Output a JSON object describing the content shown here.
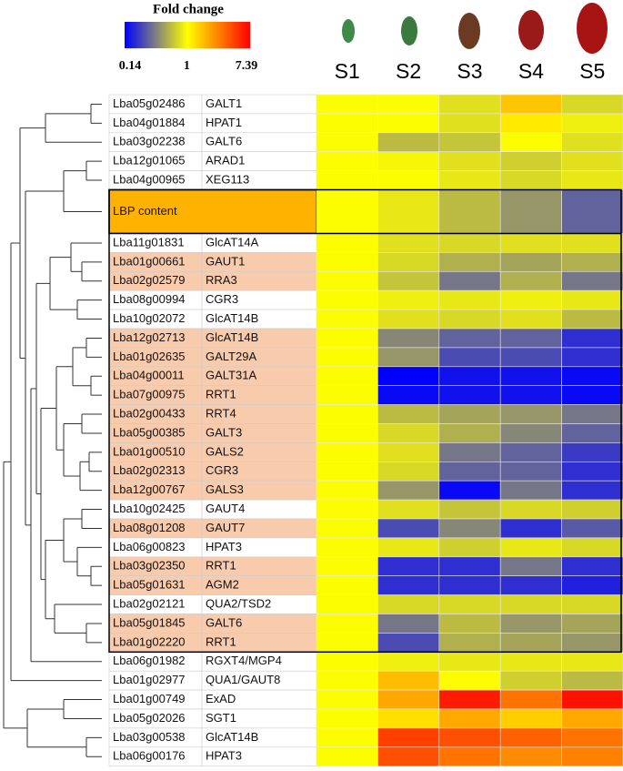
{
  "chart_data": {
    "type": "heatmap",
    "colorbar_title": "Fold change",
    "columns": [
      "S1",
      "S2",
      "S3",
      "S4",
      "S5"
    ],
    "clim": [
      0.14,
      7.39
    ],
    "cticks": [
      0.14,
      1,
      7.39
    ],
    "log_scale": true,
    "colors": [
      "#0000ff",
      "#ffff00",
      "#ff0000"
    ],
    "rows": [
      {
        "id": "Lba05g02486",
        "name": "GALT1",
        "highlight": false,
        "values": [
          1,
          1,
          0.8,
          1.6,
          0.75
        ]
      },
      {
        "id": "Lba04g01884",
        "name": "HPAT1",
        "highlight": false,
        "values": [
          1,
          1,
          0.8,
          1.2,
          0.9
        ]
      },
      {
        "id": "Lba03g02238",
        "name": "GALT6",
        "highlight": false,
        "values": [
          1,
          0.6,
          0.65,
          1,
          0.8
        ]
      },
      {
        "id": "Lba12g01065",
        "name": "ARAD1",
        "highlight": false,
        "values": [
          1,
          0.95,
          0.8,
          0.7,
          0.8
        ]
      },
      {
        "id": "Lba04g00965",
        "name": "XEG113",
        "highlight": false,
        "values": [
          1,
          1,
          0.85,
          0.75,
          0.85
        ]
      },
      {
        "label": "LBP content",
        "values": [
          1,
          0.85,
          0.6,
          0.45,
          0.3
        ]
      },
      {
        "id": "Lba11g01831",
        "name": "GlcAT14A",
        "highlight": false,
        "values": [
          1,
          0.8,
          0.75,
          0.8,
          0.8
        ]
      },
      {
        "id": "Lba01g00661",
        "name": "GAUT1",
        "highlight": true,
        "values": [
          1,
          0.75,
          0.55,
          0.5,
          0.55
        ]
      },
      {
        "id": "Lba02g02579",
        "name": "RRA3",
        "highlight": true,
        "values": [
          1,
          0.65,
          0.35,
          0.55,
          0.35
        ]
      },
      {
        "id": "Lba08g00994",
        "name": "CGR3",
        "highlight": false,
        "values": [
          1,
          0.9,
          0.85,
          0.9,
          0.85
        ]
      },
      {
        "id": "Lba10g02072",
        "name": "GlcAT14B",
        "highlight": false,
        "values": [
          1,
          0.8,
          0.75,
          0.8,
          0.6
        ]
      },
      {
        "id": "Lba12g02713",
        "name": "GlcAT14B",
        "highlight": true,
        "values": [
          1,
          0.4,
          0.3,
          0.3,
          0.2
        ]
      },
      {
        "id": "Lba01g02635",
        "name": "GALT29A",
        "highlight": true,
        "values": [
          1,
          0.45,
          0.25,
          0.25,
          0.2
        ]
      },
      {
        "id": "Lba04g00011",
        "name": "GALT31A",
        "highlight": true,
        "values": [
          1,
          0.14,
          0.16,
          0.16,
          0.15
        ]
      },
      {
        "id": "Lba07g00975",
        "name": "RRT1",
        "highlight": true,
        "values": [
          1,
          0.15,
          0.16,
          0.16,
          0.15
        ]
      },
      {
        "id": "Lba02g00433",
        "name": "RRT4",
        "highlight": true,
        "values": [
          1,
          0.6,
          0.5,
          0.45,
          0.35
        ]
      },
      {
        "id": "Lba05g00385",
        "name": "GALT3",
        "highlight": true,
        "values": [
          1,
          0.75,
          0.55,
          0.4,
          0.3
        ]
      },
      {
        "id": "Lba01g00510",
        "name": "GALS2",
        "highlight": true,
        "values": [
          1,
          0.8,
          0.35,
          0.3,
          0.22
        ]
      },
      {
        "id": "Lba02g02313",
        "name": "CGR3",
        "highlight": true,
        "values": [
          1,
          0.75,
          0.3,
          0.3,
          0.2
        ]
      },
      {
        "id": "Lba12g00767",
        "name": "GALS3",
        "highlight": true,
        "values": [
          1,
          0.45,
          0.15,
          0.35,
          0.2
        ]
      },
      {
        "id": "Lba10g02425",
        "name": "GAUT4",
        "highlight": false,
        "values": [
          1,
          0.8,
          0.65,
          0.75,
          0.7
        ]
      },
      {
        "id": "Lba08g01208",
        "name": "GAUT7",
        "highlight": true,
        "values": [
          1,
          0.25,
          0.4,
          0.2,
          0.28
        ]
      },
      {
        "id": "Lba06g00823",
        "name": "HPAT3",
        "highlight": false,
        "values": [
          1,
          0.85,
          0.7,
          0.85,
          0.75
        ]
      },
      {
        "id": "Lba03g02350",
        "name": "RRT1",
        "highlight": true,
        "values": [
          1,
          0.2,
          0.2,
          0.35,
          0.2
        ]
      },
      {
        "id": "Lba05g01631",
        "name": "AGM2",
        "highlight": true,
        "values": [
          1,
          0.2,
          0.2,
          0.2,
          0.18
        ]
      },
      {
        "id": "Lba02g02121",
        "name": "QUA2/TSD2",
        "highlight": false,
        "values": [
          1,
          0.75,
          0.75,
          0.75,
          0.75
        ]
      },
      {
        "id": "Lba05g01845",
        "name": "GALT6",
        "highlight": true,
        "values": [
          1,
          0.35,
          0.6,
          0.45,
          0.5
        ]
      },
      {
        "id": "Lba01g02220",
        "name": "RRT1",
        "highlight": true,
        "values": [
          1,
          0.25,
          0.55,
          0.5,
          0.45
        ]
      },
      {
        "id": "Lba06g01982",
        "name": "RGXT4/MGP4",
        "highlight": false,
        "values": [
          1,
          0.9,
          0.85,
          0.85,
          0.85
        ]
      },
      {
        "id": "Lba01g02977",
        "name": "QUA1/GAUT8",
        "highlight": false,
        "values": [
          1,
          1.7,
          1.05,
          0.7,
          0.6
        ]
      },
      {
        "id": "Lba01g00749",
        "name": "ExAD",
        "highlight": false,
        "values": [
          1,
          2,
          6,
          3,
          6.5
        ]
      },
      {
        "id": "Lba05g02026",
        "name": "SGT1",
        "highlight": false,
        "values": [
          1,
          1.3,
          2,
          1.5,
          2
        ]
      },
      {
        "id": "Lba03g00538",
        "name": "GlcAT14B",
        "highlight": false,
        "values": [
          1,
          4.5,
          4,
          3.5,
          3
        ]
      },
      {
        "id": "Lba06g00176",
        "name": "HPAT3",
        "highlight": false,
        "values": [
          1,
          4,
          3,
          2.5,
          2.7
        ]
      }
    ]
  }
}
